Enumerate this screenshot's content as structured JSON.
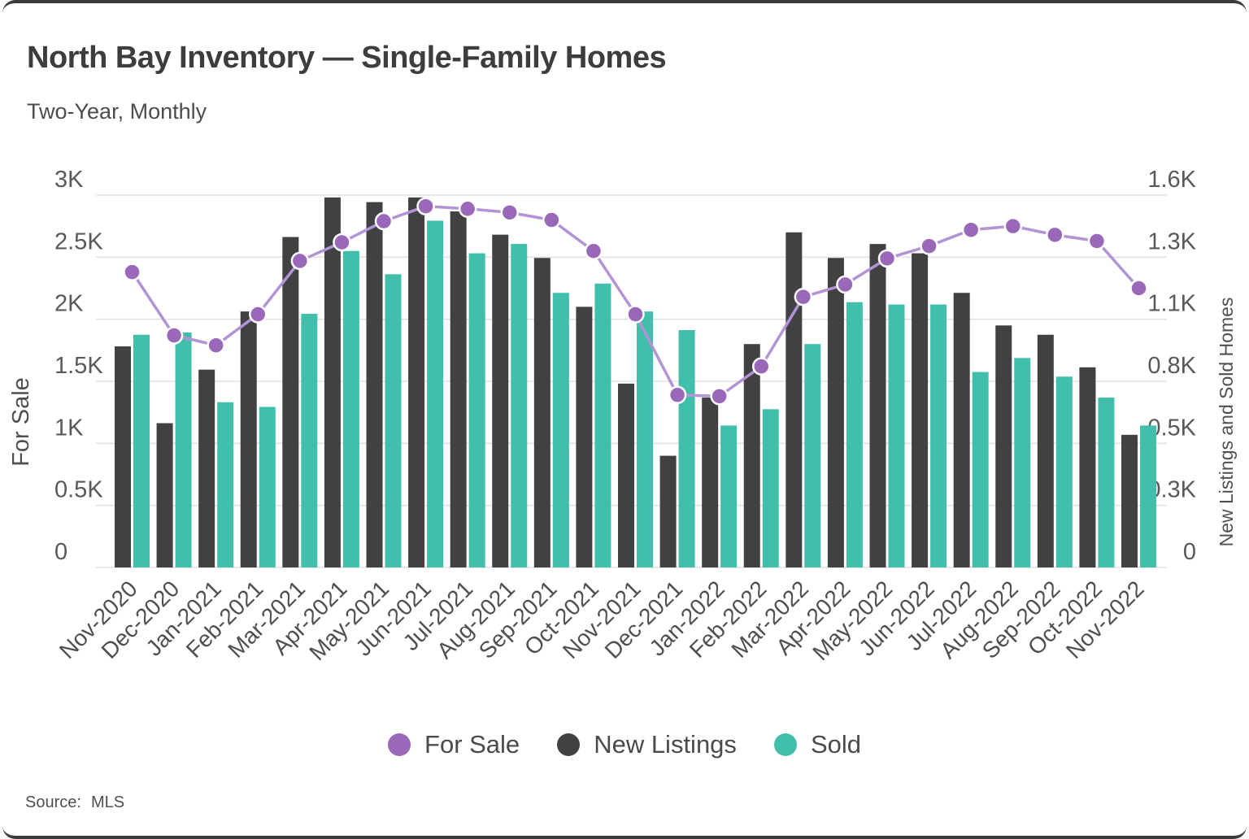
{
  "card": {
    "title": "North Bay Inventory — Single-Family Homes",
    "subtitle": "Two-Year, Monthly"
  },
  "source": {
    "label": "Source:",
    "value": "MLS"
  },
  "legend": [
    {
      "label": "For Sale",
      "color": "#9a68b8"
    },
    {
      "label": "New Listings",
      "color": "#414143"
    },
    {
      "label": "Sold",
      "color": "#41bfab"
    }
  ],
  "chart_data": {
    "type": "bar+line",
    "title": "North Bay Inventory — Single-Family Homes",
    "subtitle": "Two-Year, Monthly",
    "grid": true,
    "legend_position": "bottom",
    "categories": [
      "Nov-2020",
      "Dec-2020",
      "Jan-2021",
      "Feb-2021",
      "Mar-2021",
      "Apr-2021",
      "May-2021",
      "Jun-2021",
      "Jul-2021",
      "Aug-2021",
      "Sep-2021",
      "Oct-2021",
      "Nov-2021",
      "Dec-2021",
      "Jan-2022",
      "Feb-2022",
      "Mar-2022",
      "Apr-2022",
      "May-2022",
      "Jun-2022",
      "Jul-2022",
      "Aug-2022",
      "Sep-2022",
      "Oct-2022",
      "Nov-2022"
    ],
    "series": [
      {
        "name": "For Sale",
        "type": "line",
        "axis": "left",
        "color": "#9a68b8",
        "line_color": "#b293d3",
        "values": [
          2380,
          1870,
          1790,
          2040,
          2470,
          2620,
          2790,
          2910,
          2890,
          2860,
          2800,
          2550,
          2040,
          1390,
          1380,
          1620,
          2180,
          2280,
          2490,
          2590,
          2720,
          2750,
          2680,
          2630,
          2250
        ]
      },
      {
        "name": "New Listings",
        "type": "bar",
        "axis": "right",
        "color": "#414143",
        "values": [
          950,
          620,
          850,
          1100,
          1420,
          1590,
          1570,
          1590,
          1530,
          1430,
          1330,
          1120,
          790,
          480,
          730,
          960,
          1440,
          1330,
          1390,
          1350,
          1180,
          1040,
          1000,
          860,
          570
        ]
      },
      {
        "name": "Sold",
        "type": "bar",
        "axis": "right",
        "color": "#41bfab",
        "values": [
          1000,
          1010,
          710,
          690,
          1090,
          1360,
          1260,
          1490,
          1350,
          1390,
          1180,
          1220,
          1100,
          1020,
          610,
          680,
          960,
          1140,
          1130,
          1130,
          840,
          900,
          820,
          730,
          610
        ]
      }
    ],
    "left_axis": {
      "label": "For Sale",
      "range": [
        0,
        3000
      ],
      "tick_values": [
        0,
        500,
        1000,
        1500,
        2000,
        2500,
        3000
      ],
      "ticks": [
        "0",
        "0.5K",
        "1K",
        "1.5K",
        "2K",
        "2.5K",
        "3K"
      ]
    },
    "right_axis": {
      "label": "New Listings and Sold Homes",
      "range": [
        0,
        1600
      ],
      "ticks": [
        "0",
        "0.3K",
        "0.5K",
        "0.8K",
        "1.1K",
        "1.3K",
        "1.6K"
      ]
    },
    "gridline_color": "#e2e2e2"
  }
}
